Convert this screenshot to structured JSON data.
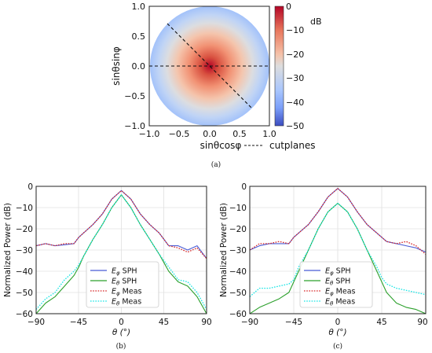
{
  "chart_data": [
    {
      "panel": "(a)",
      "type": "heatmap",
      "xlabel": "sinθcosφ",
      "ylabel": "sinθsinφ",
      "xlim": [
        -1.0,
        1.0
      ],
      "ylim": [
        -1.0,
        1.0
      ],
      "xticks": [
        "−1.0",
        "−0.5",
        "0.0",
        "0.5",
        "1.0"
      ],
      "yticks": [
        "1.0",
        "0.5",
        "0.0",
        "−0.5",
        "−1.0"
      ],
      "colorbar": {
        "unit": "dB",
        "range": [
          -50,
          0
        ],
        "ticks": [
          "0",
          "−10",
          "−20",
          "−30",
          "−40",
          "−50"
        ],
        "colors": [
          "#b40426",
          "#f7b89c",
          "#dddddd",
          "#9ebeff",
          "#3b4cc0"
        ]
      },
      "legend": [
        "cutplanes"
      ],
      "cutplanes_deg": [
        0,
        -45
      ]
    },
    {
      "panel": "(b)",
      "type": "line",
      "xlabel": "θ (°)",
      "ylabel": "Normalized Power (dB)",
      "xlim": [
        -90,
        90
      ],
      "ylim": [
        -60,
        0
      ],
      "xticks": [
        "−90",
        "−45",
        "0",
        "45",
        "90"
      ],
      "yticks": [
        "0",
        "−10",
        "−20",
        "−30",
        "−40",
        "−50",
        "−60"
      ],
      "grid": true,
      "legend_position": "lower-center",
      "x": [
        -90,
        -80,
        -70,
        -60,
        -50,
        -45,
        -40,
        -30,
        -20,
        -10,
        0,
        10,
        20,
        30,
        40,
        45,
        50,
        60,
        70,
        80,
        90
      ],
      "series": [
        {
          "name": "E_φ SPH",
          "color": "#4a5cd6",
          "style": "solid",
          "values": [
            -28,
            -27,
            -28,
            -27.5,
            -27,
            -24,
            -22,
            -18,
            -13,
            -6,
            -2,
            -6,
            -13,
            -18,
            -22,
            -25,
            -28,
            -28,
            -30,
            -28,
            -34
          ]
        },
        {
          "name": "E_θ SPH",
          "color": "#2ca02c",
          "style": "solid",
          "values": [
            -60,
            -55,
            -52,
            -47,
            -42,
            -38,
            -33,
            -25,
            -18,
            -10,
            -4,
            -10,
            -18,
            -25,
            -32,
            -36,
            -40,
            -45,
            -47,
            -52,
            -60
          ]
        },
        {
          "name": "E_φ Meas",
          "color": "#d62728",
          "style": "dotted",
          "values": [
            -28,
            -27,
            -28,
            -27,
            -27,
            -24,
            -22,
            -18,
            -13,
            -6,
            -2,
            -6,
            -13,
            -18,
            -22,
            -25,
            -28,
            -29,
            -31,
            -29,
            -34
          ]
        },
        {
          "name": "E_θ Meas",
          "color": "#17e5e5",
          "style": "dotted",
          "values": [
            -58,
            -53,
            -50,
            -44,
            -40,
            -37,
            -33,
            -25,
            -18,
            -10,
            -4,
            -10,
            -18,
            -25,
            -32,
            -35,
            -38,
            -44,
            -45,
            -50,
            -58
          ]
        }
      ]
    },
    {
      "panel": "(c)",
      "type": "line",
      "xlabel": "θ (°)",
      "ylabel": "Normalized Power (dB)",
      "xlim": [
        -90,
        90
      ],
      "ylim": [
        -60,
        0
      ],
      "xticks": [
        "−90",
        "−45",
        "0",
        "45",
        "90"
      ],
      "yticks": [
        "0",
        "−10",
        "−20",
        "−30",
        "−40",
        "−50",
        "−60"
      ],
      "grid": true,
      "legend_position": "lower-center",
      "x": [
        -90,
        -80,
        -70,
        -60,
        -50,
        -45,
        -40,
        -30,
        -20,
        -10,
        0,
        10,
        20,
        30,
        40,
        45,
        50,
        60,
        70,
        80,
        90
      ],
      "series": [
        {
          "name": "E_φ SPH",
          "color": "#4a5cd6",
          "style": "solid",
          "values": [
            -30,
            -28,
            -27,
            -27,
            -27,
            -24,
            -22,
            -18,
            -12,
            -5,
            -1,
            -5,
            -12,
            -18,
            -22,
            -24,
            -26,
            -27,
            -28,
            -29,
            -31
          ]
        },
        {
          "name": "E_θ SPH",
          "color": "#2ca02c",
          "style": "solid",
          "values": [
            -60,
            -57,
            -55,
            -53,
            -50,
            -45,
            -40,
            -30,
            -20,
            -12,
            -8,
            -12,
            -20,
            -30,
            -40,
            -45,
            -50,
            -55,
            -57,
            -58,
            -60
          ]
        },
        {
          "name": "E_φ Meas",
          "color": "#d62728",
          "style": "dotted",
          "values": [
            -30,
            -27,
            -27,
            -26,
            -27,
            -24,
            -22,
            -18,
            -12,
            -5,
            -1,
            -5,
            -12,
            -18,
            -22,
            -24,
            -26,
            -27,
            -26,
            -28,
            -32
          ]
        },
        {
          "name": "E_θ Meas",
          "color": "#17e5e5",
          "style": "dotted",
          "values": [
            -52,
            -48,
            -48,
            -47,
            -46,
            -44,
            -38,
            -30,
            -20,
            -12,
            -8,
            -12,
            -20,
            -30,
            -38,
            -43,
            -46,
            -48,
            -49,
            -50,
            -51
          ]
        }
      ]
    }
  ],
  "captions": [
    "(a)",
    "(b)",
    "(c)"
  ],
  "legend_labels": {
    "ephi_sph": "SPH",
    "etheta_sph": "SPH",
    "ephi_meas": "Meas",
    "etheta_meas": "Meas"
  }
}
